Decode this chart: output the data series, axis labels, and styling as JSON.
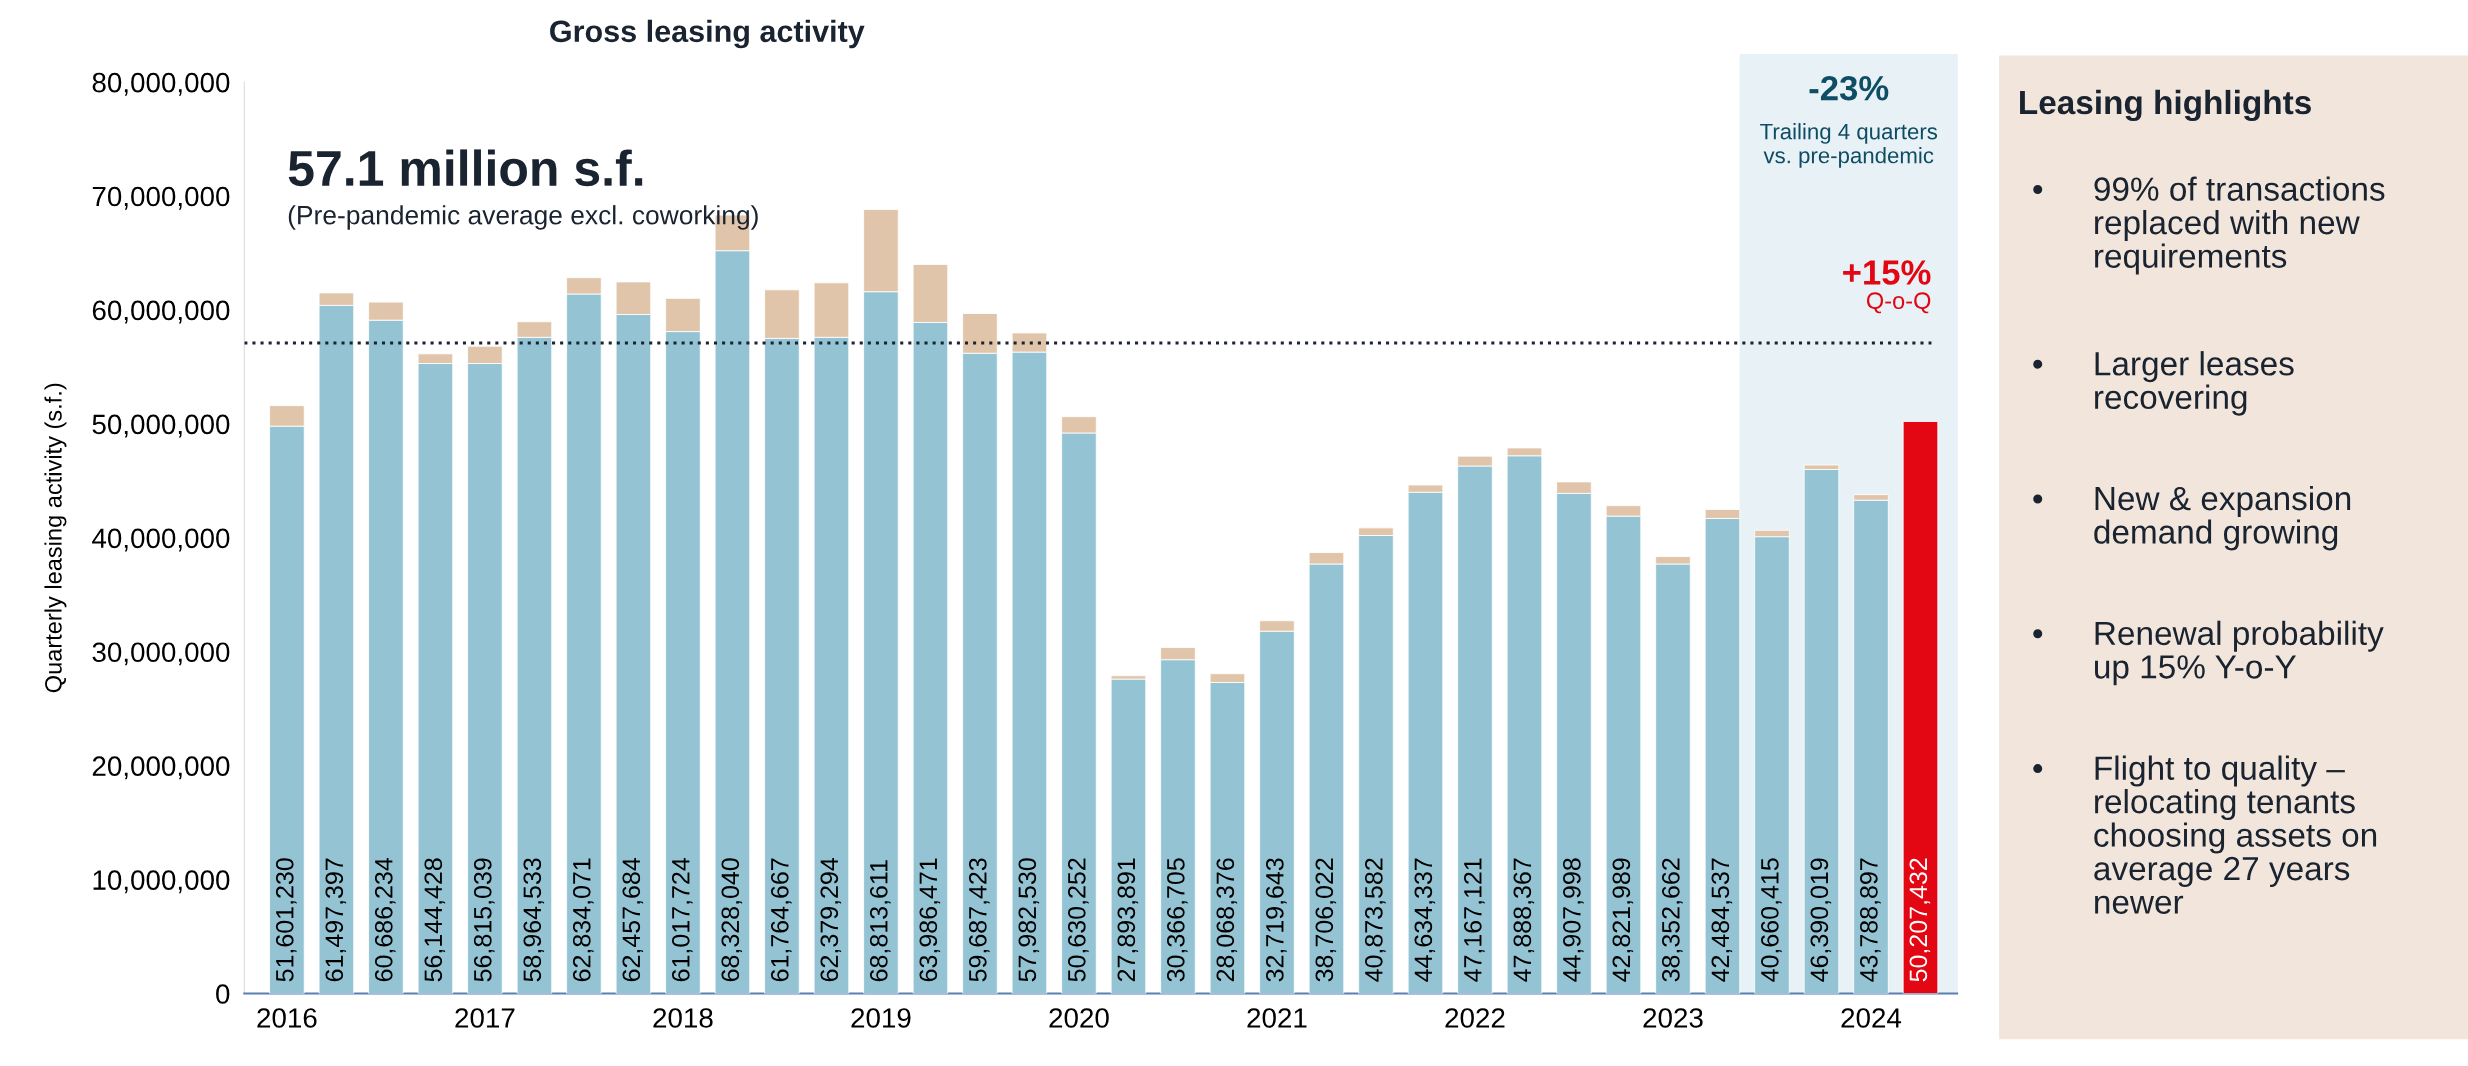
{
  "chart_data": [
    {
      "type": "bar",
      "title": "Gross leasing activity",
      "ylabel": "Quarterly leasing activity (s.f.)",
      "stacked": true,
      "x": [
        2016.0,
        2016.25,
        2016.5,
        2016.75,
        2017.0,
        2017.25,
        2017.5,
        2017.75,
        2018.0,
        2018.25,
        2018.5,
        2018.75,
        2019.0,
        2019.25,
        2019.5,
        2019.75,
        2020.0,
        2020.25,
        2020.5,
        2020.75,
        2021.0,
        2021.25,
        2021.5,
        2021.75,
        2022.0,
        2022.25,
        2022.5,
        2022.75,
        2023.0,
        2023.25,
        2023.5,
        2023.75,
        2024.0,
        2024.25
      ],
      "series": [
        {
          "color": "#94c4d4",
          "colors": [
            "#94c4d4",
            "#94c4d4",
            "#94c4d4",
            "#94c4d4",
            "#94c4d4",
            "#94c4d4",
            "#94c4d4",
            "#94c4d4",
            "#94c4d4",
            "#94c4d4",
            "#94c4d4",
            "#94c4d4",
            "#94c4d4",
            "#94c4d4",
            "#94c4d4",
            "#94c4d4",
            "#94c4d4",
            "#94c4d4",
            "#94c4d4",
            "#94c4d4",
            "#94c4d4",
            "#94c4d4",
            "#94c4d4",
            "#94c4d4",
            "#94c4d4",
            "#94c4d4",
            "#94c4d4",
            "#94c4d4",
            "#94c4d4",
            "#94c4d4",
            "#94c4d4",
            "#94c4d4",
            "#94c4d4",
            "#e30613"
          ],
          "values": [
            49800000,
            60400000,
            59100000,
            55300000,
            55300000,
            57600000,
            61400000,
            59600000,
            58100000,
            65200000,
            57500000,
            57600000,
            61600000,
            58900000,
            56200000,
            56300000,
            49200000,
            27600000,
            29300000,
            27300000,
            31800000,
            37700000,
            40200000,
            44000000,
            46300000,
            47200000,
            43900000,
            41900000,
            37700000,
            41700000,
            40100000,
            46000000,
            43300000,
            50207432
          ]
        },
        {
          "color": "#e0c5aa",
          "values": [
            1801230,
            1097397,
            1586234,
            844428,
            1515039,
            1364533,
            1434071,
            2857684,
            2917724,
            3128040,
            4264667,
            4779294,
            7213611,
            5086471,
            3487423,
            1682530,
            1430252,
            293891,
            1066705,
            768376,
            919643,
            1006022,
            673582,
            634337,
            867121,
            688367,
            1007998,
            921989,
            652662,
            784537,
            560415,
            390019,
            488897,
            null
          ]
        }
      ],
      "totals": [
        "51,601,230",
        "61,497,397",
        "60,686,234",
        "56,144,428",
        "56,815,039",
        "58,964,533",
        "62,834,071",
        "62,457,684",
        "61,017,724",
        "68,328,040",
        "61,764,667",
        "62,379,294",
        "68,813,611",
        "63,986,471",
        "59,687,423",
        "57,982,530",
        "50,630,252",
        "27,893,891",
        "30,366,705",
        "28,068,376",
        "32,719,643",
        "38,706,022",
        "40,873,582",
        "44,634,337",
        "47,167,121",
        "47,888,367",
        "44,907,998",
        "42,821,989",
        "38,352,662",
        "42,484,537",
        "40,660,415",
        "46,390,019",
        "43,788,897",
        "50,207,432"
      ],
      "xlim": [
        2015.785,
        2024.435
      ],
      "xticks": [
        2016,
        2017,
        2018,
        2019,
        2020,
        2021,
        2022,
        2023,
        2024
      ],
      "ylim": [
        0,
        80000000
      ],
      "yticks": [
        {
          "value": 0,
          "label": "0"
        },
        {
          "value": 10000000,
          "label": "10,000,000"
        },
        {
          "value": 20000000,
          "label": "20,000,000"
        },
        {
          "value": 30000000,
          "label": "30,000,000"
        },
        {
          "value": 40000000,
          "label": "40,000,000"
        },
        {
          "value": 50000000,
          "label": "50,000,000"
        },
        {
          "value": 60000000,
          "label": "60,000,000"
        },
        {
          "value": 70000000,
          "label": "70,000,000"
        },
        {
          "value": 80000000,
          "label": "80,000,000"
        }
      ],
      "ref_lines": [
        {
          "axis": "y",
          "value": 57100000,
          "label": "57.1 million s.f.",
          "color": "#1a2330",
          "line_style": "dotted"
        }
      ],
      "bands": [
        {
          "axis": "x",
          "from": 2023.34,
          "to": 2024.435,
          "label": "-23%",
          "color": "#e8f1f5"
        }
      ],
      "annotations": [
        "(Pre-pandemic average excl. coworking)",
        "Trailing 4 quarters\nvs. pre-pandemic",
        "+15%",
        "Q-o-Q"
      ],
      "grid": false
    },
    {
      "type": "other",
      "title": "Leasing highlights",
      "annotations": [
        "• 99% of transactions\nreplaced with new\nrequirements",
        "• Larger leases\nrecovering",
        "• New & expansion\ndemand growing",
        "• Renewal probability\nup 15% Y-o-Y",
        "• Flight to quality –\nrelocating tenants\nchoosing assets on\naverage 27 years\nnewer"
      ]
    }
  ]
}
